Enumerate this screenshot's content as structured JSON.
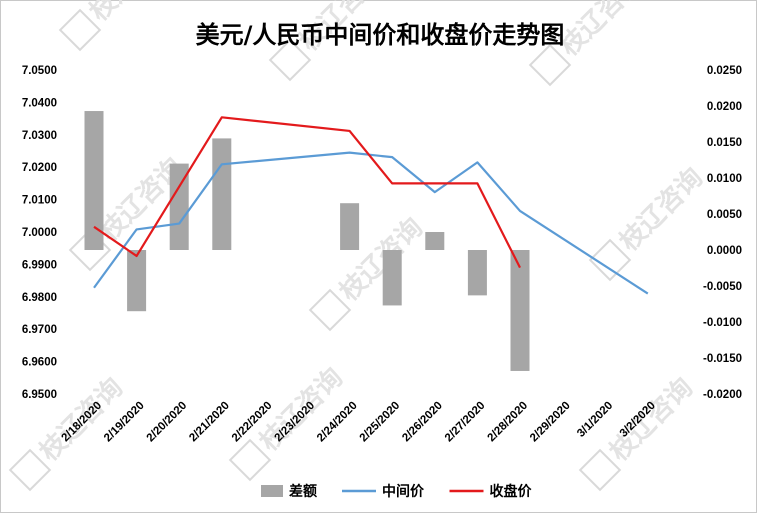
{
  "chart_data": {
    "type": "bar+line",
    "title": "美元/人民币中间价和收盘价走势图",
    "categories": [
      "2/18/2020",
      "2/19/2020",
      "2/20/2020",
      "2/21/2020",
      "2/22/2020",
      "2/23/2020",
      "2/24/2020",
      "2/25/2020",
      "2/26/2020",
      "2/27/2020",
      "2/28/2020",
      "2/29/2020",
      "3/1/2020",
      "3/2/2020"
    ],
    "left_axis": {
      "min": 6.95,
      "max": 7.05,
      "step": 0.01,
      "ticks": [
        "6.9500",
        "6.9600",
        "6.9700",
        "6.9800",
        "6.9900",
        "7.0000",
        "7.0100",
        "7.0200",
        "7.0300",
        "7.0400",
        "7.0500"
      ]
    },
    "right_axis": {
      "min": -0.02,
      "max": 0.025,
      "step": 0.005,
      "ticks": [
        "-0.0200",
        "-0.0150",
        "-0.0100",
        "-0.0050",
        "0.0000",
        "0.0050",
        "0.0100",
        "0.0150",
        "0.0200",
        "0.0250"
      ]
    },
    "series": [
      {
        "name": "差额",
        "type": "bar",
        "axis": "right",
        "color": "#a6a6a6",
        "values": [
          0.0193,
          -0.0085,
          0.012,
          0.0155,
          null,
          null,
          0.0065,
          -0.0077,
          0.0025,
          -0.0063,
          -0.0168,
          null,
          null,
          null
        ]
      },
      {
        "name": "中间价",
        "type": "line",
        "axis": "left",
        "color": "#5b9bd5",
        "values": [
          6.9828,
          7.0008,
          7.0026,
          7.0209,
          null,
          null,
          7.0245,
          7.0231,
          7.0123,
          7.0215,
          7.0065,
          null,
          null,
          6.981
        ],
        "connect_gaps": true
      },
      {
        "name": "收盘价",
        "type": "line",
        "axis": "left",
        "color": "#e31a1c",
        "values": [
          7.0016,
          6.9926,
          null,
          7.0354,
          null,
          null,
          7.0312,
          7.015,
          null,
          7.015,
          6.989,
          null,
          null,
          null
        ],
        "connect_gaps": true
      }
    ],
    "legend_position": "bottom",
    "grid": false
  },
  "watermark": "枝辽咨询"
}
